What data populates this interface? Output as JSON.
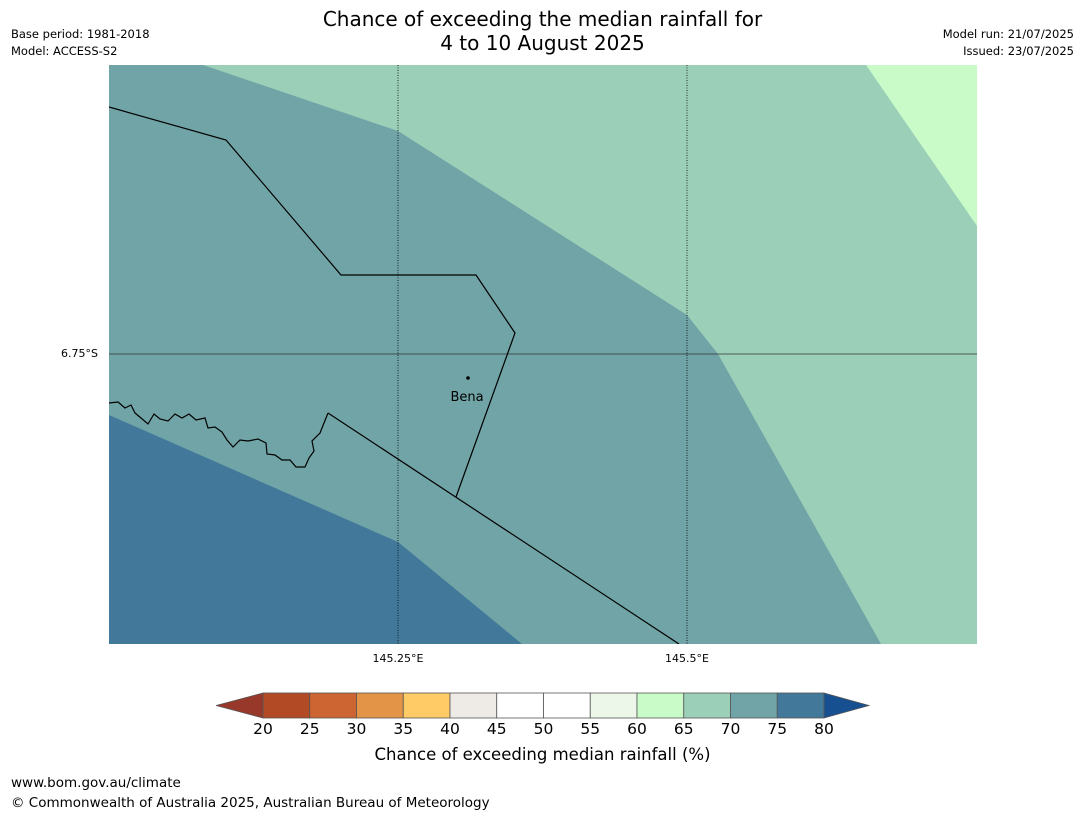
{
  "header": {
    "title_line1": "Chance of exceeding the median rainfall for",
    "title_line2": "4 to 10 August 2025",
    "base_period": "Base period: 1981-2018",
    "model": "Model: ACCESS-S2",
    "model_run": "Model run: 21/07/2025",
    "issued": "Issued: 23/07/2025"
  },
  "map": {
    "lat_label": "6.75°S",
    "lon_labels": [
      "145.25°E",
      "145.5°E"
    ],
    "place_label": "Bena",
    "zones": {
      "zone_75_80": "#42799a",
      "zone_70_75": "#70a4a7",
      "zone_65_70": "#9ccfb8",
      "zone_60_65": "#c8fbc8"
    }
  },
  "legend": {
    "title": "Chance of exceeding median rainfall (%)",
    "ticks": [
      "20",
      "25",
      "30",
      "35",
      "40",
      "45",
      "50",
      "55",
      "60",
      "65",
      "70",
      "75",
      "80"
    ],
    "low_extend_color": "#97382a",
    "high_extend_color": "#165090",
    "colors": [
      "#b14a25",
      "#cd6532",
      "#e39446",
      "#fecb66",
      "#eeebe6",
      "#ffffff",
      "#ffffff",
      "#ecf7ea",
      "#c8fbc8",
      "#9ccfb8",
      "#70a4a7",
      "#42799a"
    ]
  },
  "footer": {
    "url": "www.bom.gov.au/climate",
    "copyright": "© Commonwealth of Australia 2025, Australian Bureau of Meteorology"
  }
}
